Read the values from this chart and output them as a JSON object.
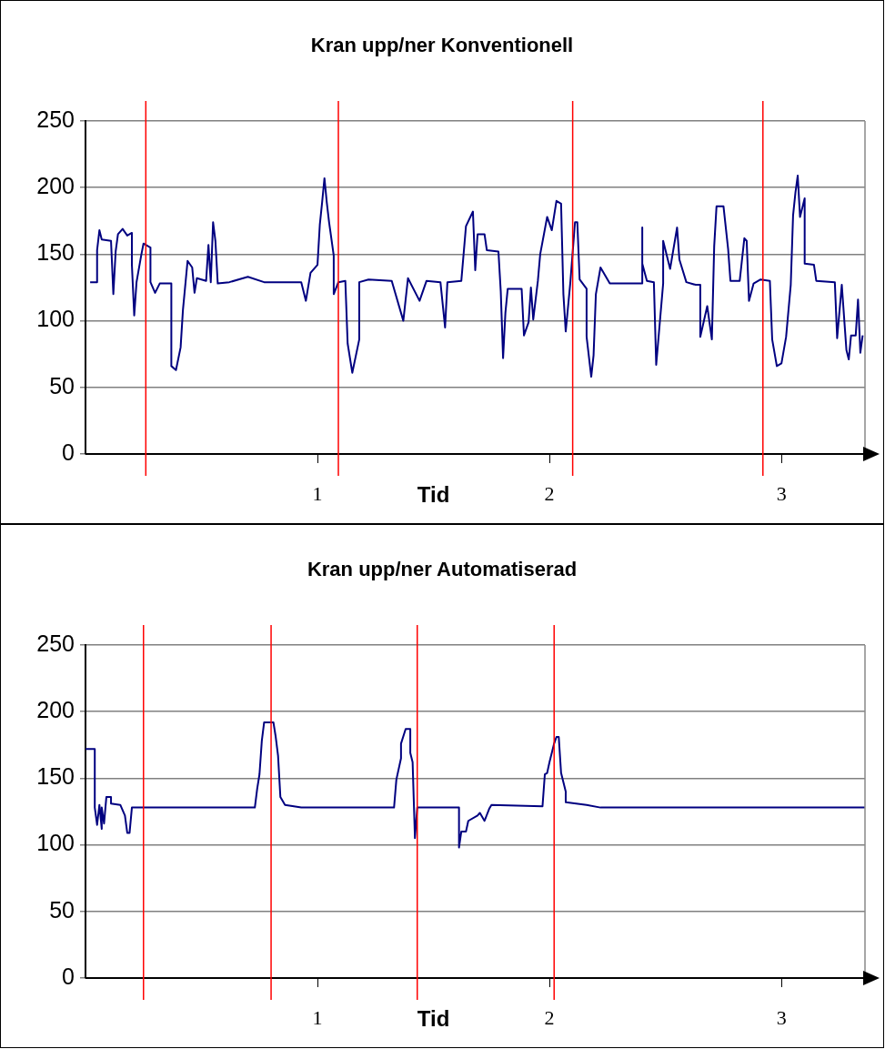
{
  "chart_data": [
    {
      "type": "line",
      "title": "Kran upp/ner Konventionell",
      "xlabel": "Tid",
      "xlim": [
        0,
        3.36
      ],
      "xticks": [
        1,
        2,
        3
      ],
      "ylim": [
        0,
        250
      ],
      "yticks": [
        0,
        50,
        100,
        150,
        200,
        250
      ],
      "grid": "y",
      "marker": "none",
      "x": [
        0.02,
        0.05,
        0.05,
        0.06,
        0.07,
        0.11,
        0.12,
        0.13,
        0.14,
        0.16,
        0.18,
        0.2,
        0.2,
        0.21,
        0.22,
        0.24,
        0.25,
        0.28,
        0.28,
        0.3,
        0.32,
        0.37,
        0.37,
        0.39,
        0.41,
        0.42,
        0.44,
        0.46,
        0.47,
        0.48,
        0.52,
        0.53,
        0.54,
        0.55,
        0.56,
        0.57,
        0.62,
        0.7,
        0.77,
        0.93,
        0.95,
        0.97,
        1.0,
        1.01,
        1.02,
        1.03,
        1.04,
        1.05,
        1.07,
        1.07,
        1.09,
        1.12,
        1.13,
        1.15,
        1.18,
        1.18,
        1.22,
        1.32,
        1.37,
        1.39,
        1.44,
        1.47,
        1.53,
        1.55,
        1.56,
        1.62,
        1.64,
        1.67,
        1.68,
        1.69,
        1.72,
        1.73,
        1.78,
        1.79,
        1.8,
        1.81,
        1.82,
        1.88,
        1.89,
        1.91,
        1.92,
        1.93,
        1.95,
        1.96,
        1.99,
        2.01,
        2.03,
        2.05,
        2.06,
        2.07,
        2.09,
        2.11,
        2.12,
        2.13,
        2.16,
        2.16,
        2.18,
        2.19,
        2.2,
        2.22,
        2.26,
        2.4,
        2.4,
        2.4,
        2.42,
        2.45,
        2.46,
        2.49,
        2.49,
        2.52,
        2.55,
        2.56,
        2.59,
        2.63,
        2.65,
        2.65,
        2.68,
        2.7,
        2.71,
        2.72,
        2.75,
        2.77,
        2.78,
        2.82,
        2.84,
        2.85,
        2.86,
        2.88,
        2.91,
        2.95,
        2.96,
        2.98,
        3.0,
        3.02,
        3.04,
        3.05,
        3.06,
        3.07,
        3.08,
        3.1,
        3.1,
        3.14,
        3.15,
        3.23,
        3.24,
        3.26,
        3.28,
        3.29,
        3.3,
        3.32,
        3.33,
        3.34,
        3.35
      ],
      "series": [
        {
          "color": "#000080",
          "values": [
            129,
            129,
            153,
            168,
            161,
            160,
            120,
            152,
            165,
            169,
            164,
            166,
            142,
            104,
            129,
            149,
            158,
            155,
            129,
            121,
            128,
            128,
            66,
            63,
            80,
            108,
            145,
            140,
            121,
            132,
            130,
            157,
            129,
            174,
            160,
            128,
            129,
            133,
            129,
            129,
            115,
            136,
            142,
            172,
            189,
            207,
            189,
            174,
            149,
            120,
            129,
            130,
            83,
            61,
            86,
            129,
            131,
            130,
            100,
            132,
            115,
            130,
            129,
            95,
            129,
            130,
            171,
            182,
            138,
            165,
            165,
            153,
            152,
            122,
            72,
            106,
            124,
            124,
            89,
            99,
            125,
            101,
            130,
            150,
            178,
            168,
            190,
            188,
            120,
            92,
            129,
            174,
            174,
            131,
            124,
            88,
            58,
            74,
            120,
            140,
            128,
            128,
            170,
            143,
            130,
            129,
            67,
            128,
            160,
            139,
            170,
            146,
            129,
            127,
            127,
            88,
            111,
            86,
            156,
            186,
            186,
            154,
            130,
            130,
            162,
            160,
            115,
            128,
            131,
            130,
            86,
            66,
            68,
            88,
            127,
            179,
            196,
            209,
            178,
            192,
            143,
            142,
            130,
            129,
            87,
            127,
            78,
            71,
            89,
            89,
            116,
            76,
            89
          ]
        }
      ],
      "ref_lines": [
        {
          "axis": "x",
          "value": 0.26,
          "color": "#ff0000"
        },
        {
          "axis": "x",
          "value": 1.09,
          "color": "#ff0000"
        },
        {
          "axis": "x",
          "value": 2.1,
          "color": "#ff0000"
        },
        {
          "axis": "x",
          "value": 2.92,
          "color": "#ff0000"
        }
      ]
    },
    {
      "type": "line",
      "title": "Kran upp/ner Automatiserad",
      "xlabel": "Tid",
      "xlim": [
        0,
        3.36
      ],
      "xticks": [
        1,
        2,
        3
      ],
      "ylim": [
        0,
        250
      ],
      "yticks": [
        0,
        50,
        100,
        150,
        200,
        250
      ],
      "grid": "y",
      "marker": "none",
      "x": [
        0.0,
        0.04,
        0.04,
        0.05,
        0.06,
        0.07,
        0.07,
        0.08,
        0.09,
        0.11,
        0.11,
        0.15,
        0.17,
        0.18,
        0.19,
        0.2,
        0.73,
        0.74,
        0.75,
        0.76,
        0.77,
        0.81,
        0.82,
        0.83,
        0.84,
        0.86,
        0.93,
        1.33,
        1.34,
        1.36,
        1.36,
        1.38,
        1.4,
        1.4,
        1.41,
        1.42,
        1.43,
        1.61,
        1.61,
        1.62,
        1.64,
        1.65,
        1.69,
        1.7,
        1.72,
        1.74,
        1.75,
        1.97,
        1.98,
        1.99,
        2.0,
        2.02,
        2.03,
        2.04,
        2.05,
        2.07,
        2.07,
        2.16,
        2.22,
        3.36
      ],
      "series": [
        {
          "color": "#000080",
          "values": [
            172,
            172,
            128,
            115,
            130,
            112,
            128,
            116,
            136,
            136,
            131,
            130,
            122,
            109,
            109,
            128,
            128,
            142,
            153,
            178,
            192,
            192,
            181,
            167,
            136,
            130,
            128,
            128,
            149,
            165,
            176,
            187,
            187,
            169,
            162,
            105,
            128,
            128,
            98,
            110,
            110,
            118,
            122,
            124,
            118,
            127,
            130,
            129,
            153,
            154,
            162,
            176,
            181,
            181,
            154,
            140,
            132,
            130,
            128,
            128
          ]
        }
      ],
      "ref_lines": [
        {
          "axis": "x",
          "value": 0.25,
          "color": "#ff0000"
        },
        {
          "axis": "x",
          "value": 0.8,
          "color": "#ff0000"
        },
        {
          "axis": "x",
          "value": 1.43,
          "color": "#ff0000"
        },
        {
          "axis": "x",
          "value": 2.02,
          "color": "#ff0000"
        }
      ]
    }
  ]
}
